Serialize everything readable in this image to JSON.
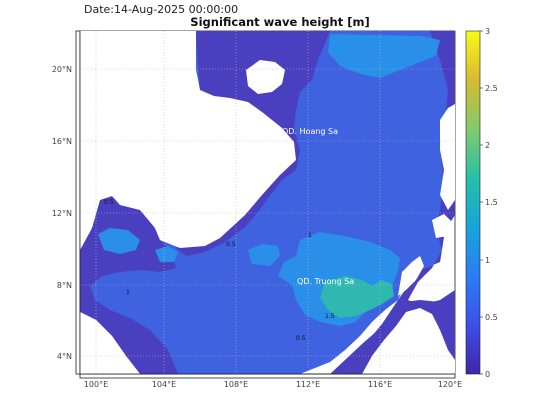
{
  "header": {
    "date_label": "Date:14-Aug-2025 00:00:00",
    "title": "Significant wave height [m]"
  },
  "map": {
    "lon_ticks": [
      "100°E",
      "104°E",
      "108°E",
      "112°E",
      "116°E",
      "120°E"
    ],
    "lat_ticks": [
      "20°N",
      "16°N",
      "12°N",
      "8°N",
      "4°N"
    ],
    "place_labels": [
      "QD. Hoang Sa",
      "QD. Truong Sa"
    ],
    "contour_labels": [
      "1",
      "0.5",
      "1.5"
    ]
  },
  "colorbar": {
    "ticks": [
      "3",
      "2.5",
      "2",
      "1.5",
      "1",
      "0.5",
      "0"
    ],
    "colors": [
      "#3e26a8",
      "#3d4fe8",
      "#2b7bf6",
      "#17a5d9",
      "#26c0a8",
      "#7fcb6c",
      "#d8ba33",
      "#f9fb15"
    ]
  },
  "colors": {
    "land": "#ffffff",
    "sea_low": "#4a3fbf",
    "sea_mid": "#3f62e0",
    "sea_high": "#2a8fe8",
    "sea_peak": "#2fb8b0"
  }
}
